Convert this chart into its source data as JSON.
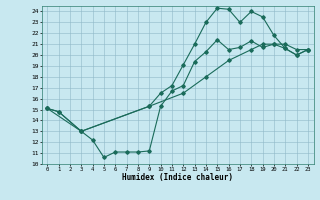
{
  "xlabel": "Humidex (Indice chaleur)",
  "bg_color": "#c8e8f0",
  "line_color": "#1a6b5a",
  "xlim": [
    -0.5,
    23.5
  ],
  "ylim": [
    10,
    24.5
  ],
  "xticks": [
    0,
    1,
    2,
    3,
    4,
    5,
    6,
    7,
    8,
    9,
    10,
    11,
    12,
    13,
    14,
    15,
    16,
    17,
    18,
    19,
    20,
    21,
    22,
    23
  ],
  "yticks": [
    10,
    11,
    12,
    13,
    14,
    15,
    16,
    17,
    18,
    19,
    20,
    21,
    22,
    23,
    24
  ],
  "line1_x": [
    0,
    1,
    3,
    4,
    5,
    6,
    7,
    8,
    9,
    10,
    11,
    12,
    13,
    14,
    15,
    16,
    17,
    18,
    19,
    20,
    21,
    22,
    23
  ],
  "line1_y": [
    15.1,
    14.8,
    13.0,
    12.2,
    10.6,
    11.1,
    11.1,
    11.1,
    11.2,
    15.3,
    16.7,
    17.2,
    19.4,
    20.3,
    21.4,
    20.5,
    20.7,
    21.3,
    20.7,
    21.0,
    20.6,
    20.0,
    20.5
  ],
  "line2_x": [
    0,
    1,
    3,
    9,
    10,
    11,
    12,
    13,
    14,
    15,
    16,
    17,
    18,
    19,
    20,
    21,
    22,
    23
  ],
  "line2_y": [
    15.1,
    14.8,
    13.0,
    15.3,
    16.5,
    17.2,
    19.1,
    21.0,
    23.0,
    24.3,
    24.2,
    23.0,
    24.0,
    23.5,
    21.8,
    20.6,
    20.0,
    20.5
  ],
  "line3_x": [
    0,
    3,
    9,
    12,
    14,
    16,
    18,
    19,
    20,
    21,
    22,
    23
  ],
  "line3_y": [
    15.1,
    13.0,
    15.3,
    16.5,
    18.0,
    19.5,
    20.5,
    21.0,
    21.0,
    21.0,
    20.5,
    20.5
  ]
}
